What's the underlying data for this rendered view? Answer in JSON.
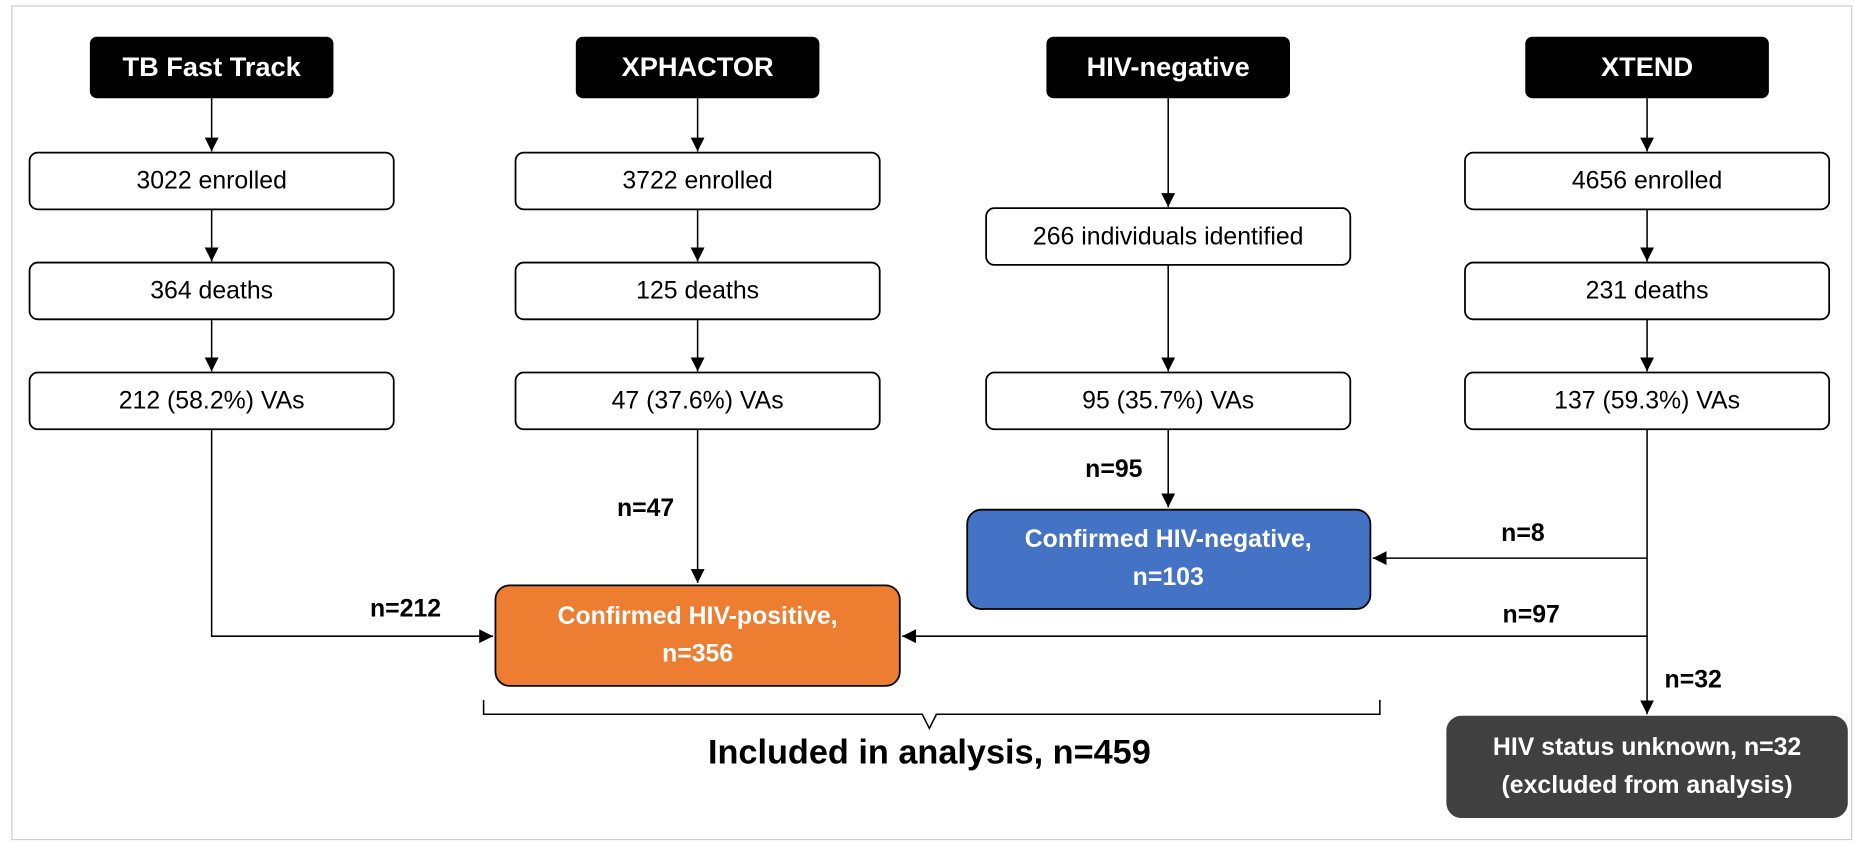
{
  "columns": [
    {
      "header": "TB Fast Track",
      "boxes": [
        "3022 enrolled",
        "364 deaths",
        "212 (58.2%) VAs"
      ]
    },
    {
      "header": "XPHACTOR",
      "boxes": [
        "3722 enrolled",
        "125 deaths",
        "47 (37.6%) VAs"
      ]
    },
    {
      "header": "HIV-negative",
      "boxes": [
        "266 individuals identified",
        "95 (35.7%) VAs"
      ]
    },
    {
      "header": "XTEND",
      "boxes": [
        "4656 enrolled",
        "231 deaths",
        "137 (59.3%) VAs"
      ]
    }
  ],
  "outcomes": {
    "positive": [
      "Confirmed HIV-positive,",
      "n=356"
    ],
    "negative": [
      "Confirmed HIV-negative,",
      "n=103"
    ],
    "unknown": [
      "HIV status unknown, n=32",
      "(excluded from analysis)"
    ]
  },
  "edge_labels": {
    "tb_to_positive": "n=212",
    "xphactor_to_positive": "n=47",
    "hivneg_to_negative": "n=95",
    "xtend_to_negative": "n=8",
    "xtend_to_positive": "n=97",
    "xtend_to_unknown": "n=32"
  },
  "analysis_label": "Included in analysis, n=459"
}
